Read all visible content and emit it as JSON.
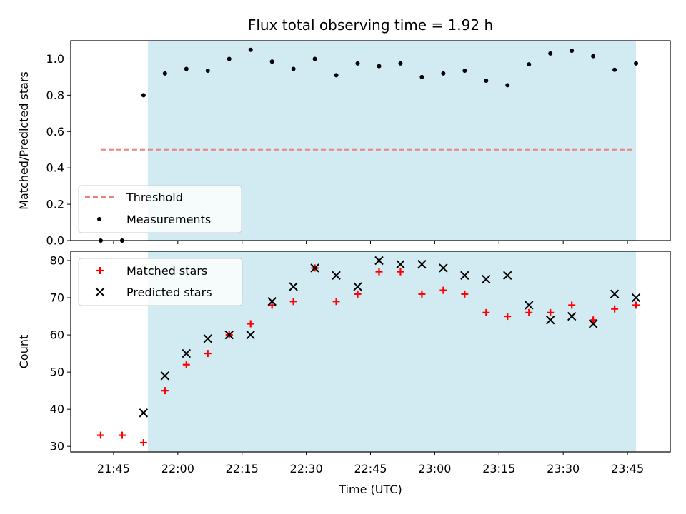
{
  "chart_data": [
    {
      "type": "scatter",
      "title": "Flux total observing time = 1.92 h",
      "ylabel": "Matched/Predicted stars",
      "ylim": [
        0,
        1.1
      ],
      "yticks": [
        "0.0",
        "0.2",
        "0.4",
        "0.6",
        "0.8",
        "1.0"
      ],
      "shaded_region": {
        "start": "21:53",
        "end": "23:47",
        "color": "#add8e6"
      },
      "threshold": {
        "name": "Threshold",
        "value": 0.5,
        "start": "21:42",
        "end": "23:46",
        "color": "#f08080"
      },
      "series": [
        {
          "name": "Measurements",
          "marker": "dot",
          "color": "#000000",
          "x": [
            "21:42",
            "21:47",
            "21:52",
            "21:57",
            "22:02",
            "22:07",
            "22:12",
            "22:17",
            "22:22",
            "22:27",
            "22:32",
            "22:37",
            "22:42",
            "22:47",
            "22:52",
            "22:57",
            "23:02",
            "23:07",
            "23:12",
            "23:17",
            "23:22",
            "23:27",
            "23:32",
            "23:37",
            "23:42",
            "23:47"
          ],
          "y": [
            0.0,
            0.0,
            0.8,
            0.92,
            0.945,
            0.935,
            1.0,
            1.05,
            0.985,
            0.945,
            1.0,
            0.91,
            0.975,
            0.96,
            0.975,
            0.9,
            0.92,
            0.935,
            0.88,
            0.855,
            0.97,
            1.03,
            1.045,
            1.015,
            0.94,
            0.975
          ]
        }
      ],
      "legend": {
        "position": "lower-left",
        "entries": [
          "Threshold",
          "Measurements"
        ]
      }
    },
    {
      "type": "scatter",
      "ylabel": "Count",
      "xlabel": "Time (UTC)",
      "ylim": [
        28.5,
        82.5
      ],
      "yticks": [
        "30",
        "40",
        "50",
        "60",
        "70",
        "80"
      ],
      "xticks": [
        "21:45",
        "22:00",
        "22:15",
        "22:30",
        "22:45",
        "23:00",
        "23:15",
        "23:30",
        "23:45"
      ],
      "series": [
        {
          "name": "Matched stars",
          "marker": "plus",
          "color": "#ff0000",
          "x": [
            "21:42",
            "21:47",
            "21:52",
            "21:57",
            "22:02",
            "22:07",
            "22:12",
            "22:17",
            "22:22",
            "22:27",
            "22:32",
            "22:37",
            "22:42",
            "22:47",
            "22:52",
            "22:57",
            "23:02",
            "23:07",
            "23:12",
            "23:17",
            "23:22",
            "23:27",
            "23:32",
            "23:37",
            "23:42",
            "23:47"
          ],
          "y": [
            33,
            33,
            31,
            45,
            52,
            55,
            60,
            63,
            68,
            69,
            78,
            69,
            71,
            77,
            77,
            71,
            72,
            71,
            66,
            65,
            66,
            66,
            68,
            64,
            67,
            68
          ]
        },
        {
          "name": "Predicted stars",
          "marker": "x",
          "color": "#000000",
          "x": [
            "21:52",
            "21:57",
            "22:02",
            "22:07",
            "22:12",
            "22:17",
            "22:22",
            "22:27",
            "22:32",
            "22:37",
            "22:42",
            "22:47",
            "22:52",
            "22:57",
            "23:02",
            "23:07",
            "23:12",
            "23:17",
            "23:22",
            "23:27",
            "23:32",
            "23:37",
            "23:42",
            "23:47"
          ],
          "y": [
            39,
            49,
            55,
            59,
            60,
            60,
            69,
            73,
            78,
            76,
            73,
            80,
            79,
            79,
            78,
            76,
            75,
            76,
            68,
            64,
            65,
            63,
            71,
            70
          ]
        }
      ],
      "legend": {
        "position": "upper-left",
        "entries": [
          "Matched stars",
          "Predicted stars"
        ]
      }
    }
  ]
}
